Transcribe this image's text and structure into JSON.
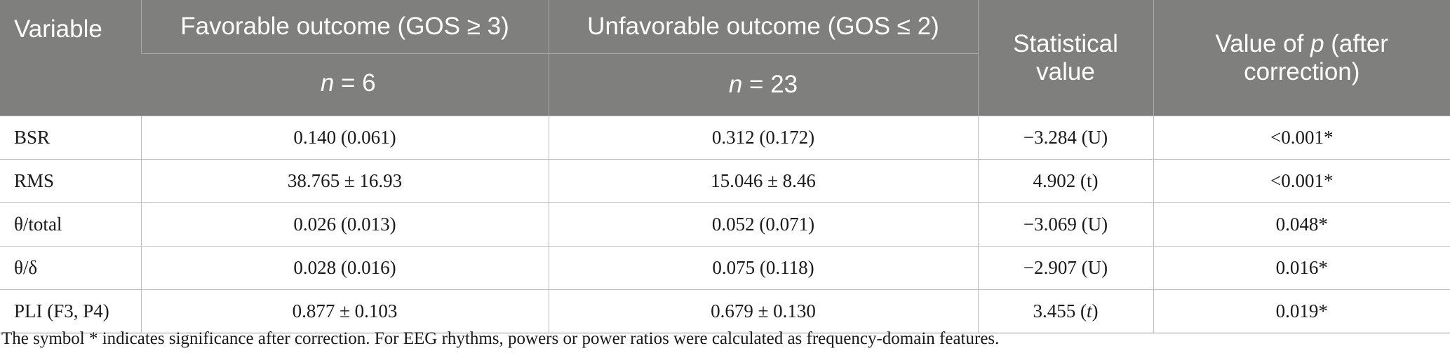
{
  "table": {
    "headers": {
      "variable": "Variable",
      "favorable": "Favorable outcome (GOS ≥ 3)",
      "unfavorable": "Unfavorable outcome (GOS ≤ 2)",
      "statistical_line1": "Statistical",
      "statistical_line2": "value",
      "pvalue_prefix": "Value of ",
      "pvalue_italic": "p",
      "pvalue_suffix_line1": " (after",
      "pvalue_line2": "correction)",
      "n_symbol": "n",
      "favorable_n": " = 6",
      "unfavorable_n": " = 23"
    },
    "rows": [
      {
        "variable": "BSR",
        "favorable": "0.140 (0.061)",
        "unfavorable": "0.312 (0.172)",
        "stat": "−3.284 (U)",
        "p": "<0.001*"
      },
      {
        "variable": "RMS",
        "favorable": "38.765 ± 16.93",
        "unfavorable": "15.046 ± 8.46",
        "stat": "4.902 (t)",
        "p": "<0.001*"
      },
      {
        "variable": "θ/total",
        "favorable": "0.026 (0.013)",
        "unfavorable": "0.052 (0.071)",
        "stat": "−3.069 (U)",
        "p": "0.048*"
      },
      {
        "variable": "θ/δ",
        "favorable": "0.028 (0.016)",
        "unfavorable": "0.075 (0.118)",
        "stat": "−2.907 (U)",
        "p": "0.016*"
      },
      {
        "variable": "PLI (F3, P4)",
        "favorable": "0.877 ± 0.103",
        "unfavorable": "0.679 ± 0.130",
        "stat_value": "3.455 (",
        "stat_italic": "t",
        "stat_close": ")",
        "p": "0.019*"
      }
    ]
  },
  "footnote": "The symbol * indicates significance after correction. For EEG rhythms, powers or power ratios were calculated as frequency-domain features."
}
